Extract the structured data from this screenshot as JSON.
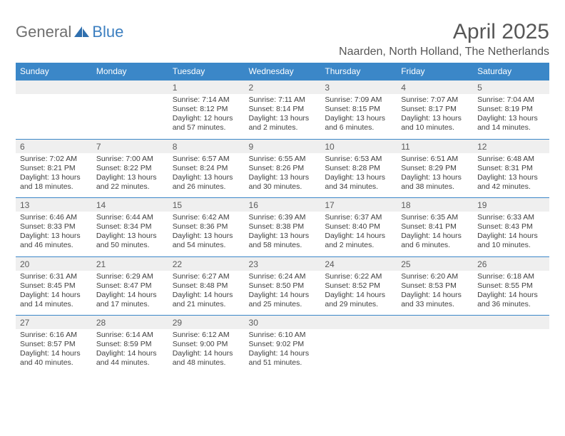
{
  "logo": {
    "text1": "General",
    "text2": "Blue"
  },
  "title": "April 2025",
  "location": "Naarden, North Holland, The Netherlands",
  "colors": {
    "header_bar": "#3b87c8",
    "daynum_bg": "#efefef",
    "text": "#404040",
    "title_text": "#575757",
    "logo_gray": "#6f6f6f",
    "logo_blue": "#3c7fc0",
    "row_border": "#3b87c8"
  },
  "day_names": [
    "Sunday",
    "Monday",
    "Tuesday",
    "Wednesday",
    "Thursday",
    "Friday",
    "Saturday"
  ],
  "weeks": [
    [
      {
        "n": "",
        "sr": "",
        "ss": "",
        "dl": ""
      },
      {
        "n": "",
        "sr": "",
        "ss": "",
        "dl": ""
      },
      {
        "n": "1",
        "sr": "Sunrise: 7:14 AM",
        "ss": "Sunset: 8:12 PM",
        "dl": "Daylight: 12 hours and 57 minutes."
      },
      {
        "n": "2",
        "sr": "Sunrise: 7:11 AM",
        "ss": "Sunset: 8:14 PM",
        "dl": "Daylight: 13 hours and 2 minutes."
      },
      {
        "n": "3",
        "sr": "Sunrise: 7:09 AM",
        "ss": "Sunset: 8:15 PM",
        "dl": "Daylight: 13 hours and 6 minutes."
      },
      {
        "n": "4",
        "sr": "Sunrise: 7:07 AM",
        "ss": "Sunset: 8:17 PM",
        "dl": "Daylight: 13 hours and 10 minutes."
      },
      {
        "n": "5",
        "sr": "Sunrise: 7:04 AM",
        "ss": "Sunset: 8:19 PM",
        "dl": "Daylight: 13 hours and 14 minutes."
      }
    ],
    [
      {
        "n": "6",
        "sr": "Sunrise: 7:02 AM",
        "ss": "Sunset: 8:21 PM",
        "dl": "Daylight: 13 hours and 18 minutes."
      },
      {
        "n": "7",
        "sr": "Sunrise: 7:00 AM",
        "ss": "Sunset: 8:22 PM",
        "dl": "Daylight: 13 hours and 22 minutes."
      },
      {
        "n": "8",
        "sr": "Sunrise: 6:57 AM",
        "ss": "Sunset: 8:24 PM",
        "dl": "Daylight: 13 hours and 26 minutes."
      },
      {
        "n": "9",
        "sr": "Sunrise: 6:55 AM",
        "ss": "Sunset: 8:26 PM",
        "dl": "Daylight: 13 hours and 30 minutes."
      },
      {
        "n": "10",
        "sr": "Sunrise: 6:53 AM",
        "ss": "Sunset: 8:28 PM",
        "dl": "Daylight: 13 hours and 34 minutes."
      },
      {
        "n": "11",
        "sr": "Sunrise: 6:51 AM",
        "ss": "Sunset: 8:29 PM",
        "dl": "Daylight: 13 hours and 38 minutes."
      },
      {
        "n": "12",
        "sr": "Sunrise: 6:48 AM",
        "ss": "Sunset: 8:31 PM",
        "dl": "Daylight: 13 hours and 42 minutes."
      }
    ],
    [
      {
        "n": "13",
        "sr": "Sunrise: 6:46 AM",
        "ss": "Sunset: 8:33 PM",
        "dl": "Daylight: 13 hours and 46 minutes."
      },
      {
        "n": "14",
        "sr": "Sunrise: 6:44 AM",
        "ss": "Sunset: 8:34 PM",
        "dl": "Daylight: 13 hours and 50 minutes."
      },
      {
        "n": "15",
        "sr": "Sunrise: 6:42 AM",
        "ss": "Sunset: 8:36 PM",
        "dl": "Daylight: 13 hours and 54 minutes."
      },
      {
        "n": "16",
        "sr": "Sunrise: 6:39 AM",
        "ss": "Sunset: 8:38 PM",
        "dl": "Daylight: 13 hours and 58 minutes."
      },
      {
        "n": "17",
        "sr": "Sunrise: 6:37 AM",
        "ss": "Sunset: 8:40 PM",
        "dl": "Daylight: 14 hours and 2 minutes."
      },
      {
        "n": "18",
        "sr": "Sunrise: 6:35 AM",
        "ss": "Sunset: 8:41 PM",
        "dl": "Daylight: 14 hours and 6 minutes."
      },
      {
        "n": "19",
        "sr": "Sunrise: 6:33 AM",
        "ss": "Sunset: 8:43 PM",
        "dl": "Daylight: 14 hours and 10 minutes."
      }
    ],
    [
      {
        "n": "20",
        "sr": "Sunrise: 6:31 AM",
        "ss": "Sunset: 8:45 PM",
        "dl": "Daylight: 14 hours and 14 minutes."
      },
      {
        "n": "21",
        "sr": "Sunrise: 6:29 AM",
        "ss": "Sunset: 8:47 PM",
        "dl": "Daylight: 14 hours and 17 minutes."
      },
      {
        "n": "22",
        "sr": "Sunrise: 6:27 AM",
        "ss": "Sunset: 8:48 PM",
        "dl": "Daylight: 14 hours and 21 minutes."
      },
      {
        "n": "23",
        "sr": "Sunrise: 6:24 AM",
        "ss": "Sunset: 8:50 PM",
        "dl": "Daylight: 14 hours and 25 minutes."
      },
      {
        "n": "24",
        "sr": "Sunrise: 6:22 AM",
        "ss": "Sunset: 8:52 PM",
        "dl": "Daylight: 14 hours and 29 minutes."
      },
      {
        "n": "25",
        "sr": "Sunrise: 6:20 AM",
        "ss": "Sunset: 8:53 PM",
        "dl": "Daylight: 14 hours and 33 minutes."
      },
      {
        "n": "26",
        "sr": "Sunrise: 6:18 AM",
        "ss": "Sunset: 8:55 PM",
        "dl": "Daylight: 14 hours and 36 minutes."
      }
    ],
    [
      {
        "n": "27",
        "sr": "Sunrise: 6:16 AM",
        "ss": "Sunset: 8:57 PM",
        "dl": "Daylight: 14 hours and 40 minutes."
      },
      {
        "n": "28",
        "sr": "Sunrise: 6:14 AM",
        "ss": "Sunset: 8:59 PM",
        "dl": "Daylight: 14 hours and 44 minutes."
      },
      {
        "n": "29",
        "sr": "Sunrise: 6:12 AM",
        "ss": "Sunset: 9:00 PM",
        "dl": "Daylight: 14 hours and 48 minutes."
      },
      {
        "n": "30",
        "sr": "Sunrise: 6:10 AM",
        "ss": "Sunset: 9:02 PM",
        "dl": "Daylight: 14 hours and 51 minutes."
      },
      {
        "n": "",
        "sr": "",
        "ss": "",
        "dl": ""
      },
      {
        "n": "",
        "sr": "",
        "ss": "",
        "dl": ""
      },
      {
        "n": "",
        "sr": "",
        "ss": "",
        "dl": ""
      }
    ]
  ]
}
